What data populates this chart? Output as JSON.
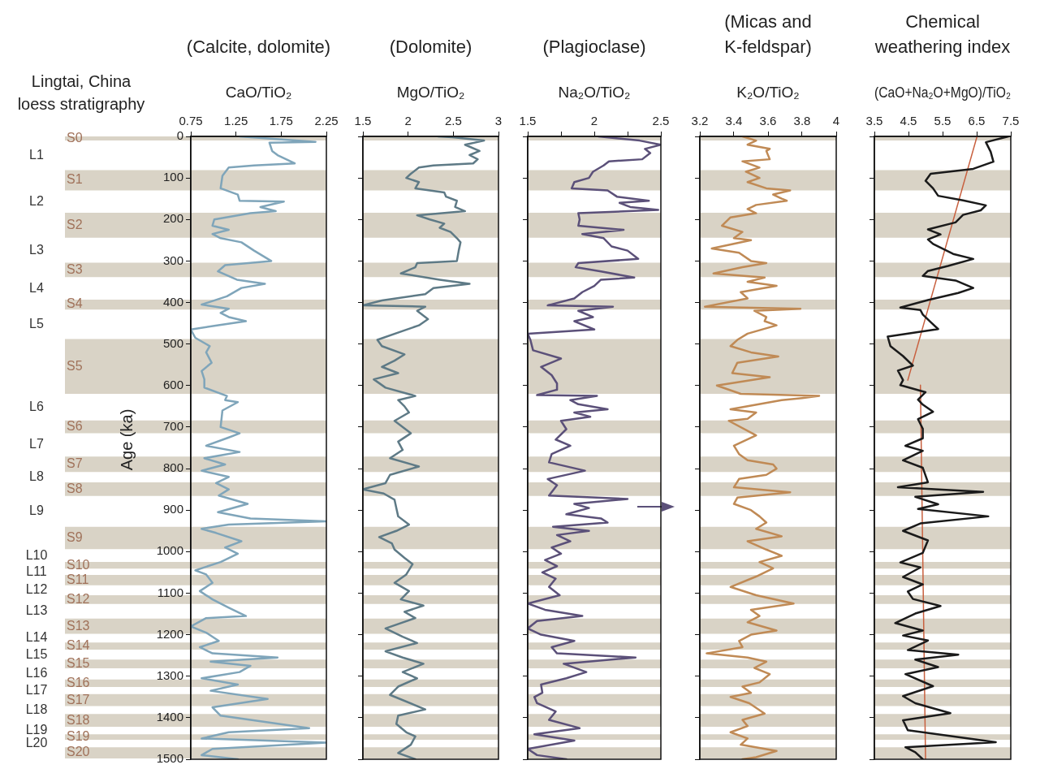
{
  "chart_data": [
    {
      "type": "line",
      "title": "(Calcite, dolomite)",
      "xlabel": "CaO/TiO₂",
      "ylabel": "Age (ka)",
      "xlim": [
        0.75,
        2.25
      ],
      "xticks": [
        0.75,
        1.25,
        1.75,
        2.25
      ],
      "ylim": [
        1500,
        0
      ],
      "yticks": [
        0,
        100,
        200,
        300,
        400,
        500,
        600,
        700,
        800,
        900,
        1000,
        1100,
        1200,
        1300,
        1400,
        1500
      ],
      "annotations": [
        "Lingtai, China loess stratigraphy",
        "L1",
        "L2",
        "L3",
        "L4",
        "L5",
        "L6",
        "L7",
        "L8",
        "L9",
        "L10",
        "L11",
        "L12",
        "L13",
        "L14",
        "L15",
        "L16",
        "L17",
        "L18",
        "L19",
        "L20"
      ],
      "bands": [
        {
          "axis": "y",
          "from": 0,
          "to": 10,
          "label": "S0",
          "color": "#d9d3c6"
        },
        {
          "axis": "y",
          "from": 81,
          "to": 130,
          "label": "S1",
          "color": "#d9d3c6"
        },
        {
          "axis": "y",
          "from": 184,
          "to": 244,
          "label": "S2",
          "color": "#d9d3c6"
        },
        {
          "axis": "y",
          "from": 304,
          "to": 339,
          "label": "S3",
          "color": "#d9d3c6"
        },
        {
          "axis": "y",
          "from": 393,
          "to": 417,
          "label": "S4",
          "color": "#d9d3c6"
        },
        {
          "axis": "y",
          "from": 488,
          "to": 620,
          "label": "S5",
          "color": "#d9d3c6"
        },
        {
          "axis": "y",
          "from": 684,
          "to": 715,
          "label": "S6",
          "color": "#d9d3c6"
        },
        {
          "axis": "y",
          "from": 771,
          "to": 808,
          "label": "S7",
          "color": "#d9d3c6"
        },
        {
          "axis": "y",
          "from": 833,
          "to": 866,
          "label": "S8",
          "color": "#d9d3c6"
        },
        {
          "axis": "y",
          "from": 940,
          "to": 994,
          "label": "S9",
          "color": "#d9d3c6"
        },
        {
          "axis": "y",
          "from": 1025,
          "to": 1041,
          "label": "S10",
          "color": "#d9d3c6"
        },
        {
          "axis": "y",
          "from": 1056,
          "to": 1081,
          "label": "S11",
          "color": "#d9d3c6"
        },
        {
          "axis": "y",
          "from": 1105,
          "to": 1126,
          "label": "S12",
          "color": "#d9d3c6"
        },
        {
          "axis": "y",
          "from": 1161,
          "to": 1198,
          "label": "S13",
          "color": "#d9d3c6"
        },
        {
          "axis": "y",
          "from": 1219,
          "to": 1236,
          "label": "S14",
          "color": "#d9d3c6"
        },
        {
          "axis": "y",
          "from": 1260,
          "to": 1281,
          "label": "S15",
          "color": "#d9d3c6"
        },
        {
          "axis": "y",
          "from": 1308,
          "to": 1326,
          "label": "S16",
          "color": "#d9d3c6"
        },
        {
          "axis": "y",
          "from": 1343,
          "to": 1372,
          "label": "S17",
          "color": "#d9d3c6"
        },
        {
          "axis": "y",
          "from": 1391,
          "to": 1422,
          "label": "S18",
          "color": "#d9d3c6"
        },
        {
          "axis": "y",
          "from": 1440,
          "to": 1453,
          "label": "S19",
          "color": "#d9d3c6"
        },
        {
          "axis": "y",
          "from": 1471,
          "to": 1498,
          "label": "S20",
          "color": "#d9d3c6"
        }
      ],
      "series": [
        {
          "color": "#7fa5ba",
          "x": [
            1.29,
            2.13,
            1.62,
            1.65,
            1.71,
            1.9,
            1.45,
            1.17,
            1.1,
            1.08,
            1.27,
            1.29,
            1.78,
            1.52,
            1.69,
            1.41,
            1.01,
            0.99,
            1.17,
            0.99,
            1.08,
            1.31,
            1.45,
            1.64,
            1.13,
            1.05,
            1.26,
            1.57,
            1.31,
            1.15,
            0.87,
            1.17,
            1.08,
            1.17,
            1.36,
            1.04,
            0.75,
            0.8,
            0.96,
            0.92,
            0.98,
            0.87,
            0.9,
            0.9,
            1.15,
            1.13,
            1.27,
            1.1,
            1.08,
            1.29,
            1.17,
            0.92,
            1.29,
            0.9,
            1.13,
            0.87,
            1.17,
            1.03,
            1.17,
            1.06,
            1.38,
            1.05,
            1.41,
            2.25,
            1.17,
            0.87,
            1.03,
            1.31,
            1.13,
            1.27,
            1.08,
            0.8,
            0.92,
            0.99,
            0.85,
            0.99,
            1.17,
            1.36,
            0.92,
            0.75,
            0.92,
            1.06,
            0.85,
            0.99,
            1.71,
            0.97,
            1.41,
            1.29,
            0.87,
            1.27,
            0.97,
            1.6,
            0.99,
            1.08,
            2.06,
            1.17,
            0.87,
            2.25,
            0.99,
            0.87,
            1.27
          ],
          "values": [
            0,
            13,
            15,
            35,
            45,
            65,
            70,
            75,
            95,
            125,
            140,
            155,
            157,
            170,
            180,
            185,
            200,
            215,
            225,
            235,
            245,
            255,
            275,
            300,
            310,
            325,
            345,
            355,
            365,
            385,
            405,
            415,
            425,
            435,
            445,
            455,
            465,
            485,
            505,
            520,
            545,
            565,
            585,
            605,
            625,
            635,
            640,
            660,
            700,
            715,
            725,
            745,
            760,
            775,
            790,
            805,
            820,
            835,
            850,
            865,
            885,
            905,
            920,
            927,
            935,
            945,
            955,
            975,
            990,
            1005,
            1025,
            1045,
            1055,
            1075,
            1095,
            1115,
            1135,
            1155,
            1160,
            1180,
            1195,
            1215,
            1230,
            1245,
            1255,
            1265,
            1275,
            1290,
            1305,
            1320,
            1335,
            1355,
            1375,
            1395,
            1425,
            1435,
            1450,
            1460,
            1475,
            1490,
            1500
          ]
        }
      ]
    },
    {
      "type": "line",
      "title": "(Dolomite)",
      "xlabel": "MgO/TiO₂",
      "xlim": [
        1.5,
        3
      ],
      "xticks": [
        1.5,
        2,
        2.5,
        3
      ],
      "ylim": [
        1500,
        0
      ],
      "yticks": [
        0,
        100,
        200,
        300,
        400,
        500,
        600,
        700,
        800,
        900,
        1000,
        1100,
        1200,
        1300,
        1400,
        1500
      ],
      "tick_labels": "x",
      "bands": [
        {
          "axis": "y",
          "from": 0,
          "to": 10,
          "color": "#d9d3c6"
        },
        {
          "axis": "y",
          "from": 81,
          "to": 130,
          "color": "#d9d3c6"
        },
        {
          "axis": "y",
          "from": 184,
          "to": 244,
          "color": "#d9d3c6"
        },
        {
          "axis": "y",
          "from": 304,
          "to": 339,
          "color": "#d9d3c6"
        },
        {
          "axis": "y",
          "from": 393,
          "to": 417,
          "color": "#d9d3c6"
        },
        {
          "axis": "y",
          "from": 488,
          "to": 620,
          "color": "#d9d3c6"
        },
        {
          "axis": "y",
          "from": 684,
          "to": 715,
          "color": "#d9d3c6"
        },
        {
          "axis": "y",
          "from": 771,
          "to": 808,
          "color": "#d9d3c6"
        },
        {
          "axis": "y",
          "from": 833,
          "to": 866,
          "color": "#d9d3c6"
        },
        {
          "axis": "y",
          "from": 940,
          "to": 994,
          "color": "#d9d3c6"
        },
        {
          "axis": "y",
          "from": 1025,
          "to": 1041,
          "color": "#d9d3c6"
        },
        {
          "axis": "y",
          "from": 1056,
          "to": 1081,
          "color": "#d9d3c6"
        },
        {
          "axis": "y",
          "from": 1105,
          "to": 1126,
          "color": "#d9d3c6"
        },
        {
          "axis": "y",
          "from": 1161,
          "to": 1198,
          "color": "#d9d3c6"
        },
        {
          "axis": "y",
          "from": 1219,
          "to": 1236,
          "color": "#d9d3c6"
        },
        {
          "axis": "y",
          "from": 1260,
          "to": 1281,
          "color": "#d9d3c6"
        },
        {
          "axis": "y",
          "from": 1308,
          "to": 1326,
          "color": "#d9d3c6"
        },
        {
          "axis": "y",
          "from": 1343,
          "to": 1372,
          "color": "#d9d3c6"
        },
        {
          "axis": "y",
          "from": 1391,
          "to": 1422,
          "color": "#d9d3c6"
        },
        {
          "axis": "y",
          "from": 1440,
          "to": 1453,
          "color": "#d9d3c6"
        },
        {
          "axis": "y",
          "from": 1471,
          "to": 1498,
          "color": "#d9d3c6"
        }
      ],
      "series": [
        {
          "color": "#5e7a86",
          "x": [
            2.33,
            2.49,
            2.84,
            2.63,
            2.79,
            2.68,
            2.77,
            2.72,
            2.28,
            2.12,
            2.03,
            1.98,
            2.12,
            2.08,
            2.4,
            2.42,
            2.54,
            2.52,
            2.63,
            2.1,
            2.24,
            2.4,
            2.35,
            2.47,
            2.54,
            2.58,
            2.56,
            2.54,
            2.1,
            2.08,
            1.92,
            2.35,
            2.68,
            2.28,
            2.19,
            1.71,
            1.5,
            2.19,
            2.1,
            2.22,
            2.12,
            1.92,
            1.66,
            1.71,
            1.96,
            1.85,
            1.71,
            1.89,
            1.62,
            1.75,
            2.08,
            1.89,
            1.96,
            2.01,
            1.85,
            2.03,
            1.89,
            1.94,
            1.8,
            2.12,
            1.8,
            1.75,
            1.5,
            1.73,
            1.85,
            1.87,
            1.89,
            2.01,
            1.87,
            1.68,
            1.82,
            1.85,
            1.96,
            2.05,
            1.98,
            1.85,
            2.01,
            1.92,
            2.17,
            1.96,
            2.08,
            1.75,
            1.94,
            2.1,
            1.75,
            1.94,
            2.17,
            1.94,
            2.1,
            1.89,
            1.8,
            2.19,
            1.89,
            1.87,
            1.98,
            2.08,
            2.03,
            1.89,
            2.08
          ],
          "values": [
            0,
            2,
            10,
            20,
            35,
            45,
            55,
            65,
            70,
            75,
            90,
            100,
            110,
            125,
            135,
            145,
            155,
            170,
            180,
            190,
            200,
            210,
            220,
            230,
            245,
            255,
            275,
            300,
            305,
            315,
            330,
            345,
            355,
            365,
            380,
            395,
            407,
            410,
            420,
            440,
            455,
            470,
            490,
            505,
            525,
            540,
            555,
            570,
            585,
            605,
            625,
            635,
            650,
            665,
            685,
            715,
            735,
            755,
            775,
            795,
            815,
            835,
            850,
            860,
            875,
            895,
            915,
            935,
            950,
            965,
            980,
            995,
            1015,
            1030,
            1055,
            1075,
            1095,
            1115,
            1130,
            1145,
            1160,
            1185,
            1205,
            1220,
            1240,
            1255,
            1270,
            1290,
            1305,
            1325,
            1345,
            1380,
            1395,
            1415,
            1435,
            1445,
            1465,
            1485,
            1500
          ]
        }
      ]
    },
    {
      "type": "line",
      "title": "(Plagioclase)",
      "xlabel": "Na₂O/TiO₂",
      "xlim": [
        1.5,
        2.5
      ],
      "xticks": [
        1.5,
        {
          "value": 1.75,
          "label": null
        },
        2,
        {
          "value": 2.25,
          "label": null
        },
        2.5
      ],
      "ylim": [
        1500,
        0
      ],
      "yticks": [
        0,
        100,
        200,
        300,
        400,
        500,
        600,
        700,
        800,
        900,
        1000,
        1100,
        1200,
        1300,
        1400,
        1500
      ],
      "tick_labels": "x",
      "bands": [
        {
          "axis": "y",
          "from": 0,
          "to": 10,
          "color": "#d9d3c6"
        },
        {
          "axis": "y",
          "from": 81,
          "to": 130,
          "color": "#d9d3c6"
        },
        {
          "axis": "y",
          "from": 184,
          "to": 244,
          "color": "#d9d3c6"
        },
        {
          "axis": "y",
          "from": 304,
          "to": 339,
          "color": "#d9d3c6"
        },
        {
          "axis": "y",
          "from": 393,
          "to": 417,
          "color": "#d9d3c6"
        },
        {
          "axis": "y",
          "from": 488,
          "to": 620,
          "color": "#d9d3c6"
        },
        {
          "axis": "y",
          "from": 684,
          "to": 715,
          "color": "#d9d3c6"
        },
        {
          "axis": "y",
          "from": 771,
          "to": 808,
          "color": "#d9d3c6"
        },
        {
          "axis": "y",
          "from": 833,
          "to": 866,
          "color": "#d9d3c6"
        },
        {
          "axis": "y",
          "from": 940,
          "to": 994,
          "color": "#d9d3c6"
        },
        {
          "axis": "y",
          "from": 1025,
          "to": 1041,
          "color": "#d9d3c6"
        },
        {
          "axis": "y",
          "from": 1056,
          "to": 1081,
          "color": "#d9d3c6"
        },
        {
          "axis": "y",
          "from": 1105,
          "to": 1126,
          "color": "#d9d3c6"
        },
        {
          "axis": "y",
          "from": 1161,
          "to": 1198,
          "color": "#d9d3c6"
        },
        {
          "axis": "y",
          "from": 1219,
          "to": 1236,
          "color": "#d9d3c6"
        },
        {
          "axis": "y",
          "from": 1260,
          "to": 1281,
          "color": "#d9d3c6"
        },
        {
          "axis": "y",
          "from": 1308,
          "to": 1326,
          "color": "#d9d3c6"
        },
        {
          "axis": "y",
          "from": 1343,
          "to": 1372,
          "color": "#d9d3c6"
        },
        {
          "axis": "y",
          "from": 1391,
          "to": 1422,
          "color": "#d9d3c6"
        },
        {
          "axis": "y",
          "from": 1440,
          "to": 1453,
          "color": "#d9d3c6"
        },
        {
          "axis": "y",
          "from": 1471,
          "to": 1498,
          "color": "#d9d3c6"
        }
      ],
      "series": [
        {
          "color": "#5b5079",
          "x": [
            2.03,
            2.34,
            2.5,
            2.38,
            2.42,
            2.36,
            2.11,
            2.07,
            1.99,
            1.96,
            1.85,
            1.83,
            2.1,
            2.17,
            2.41,
            2.19,
            2.27,
            2.48,
            1.88,
            1.89,
            1.88,
            2.22,
            1.91,
            2.07,
            2.13,
            2.25,
            2.33,
            1.88,
            1.86,
            2.05,
            2.3,
            2.05,
            2.0,
            1.91,
            1.85,
            1.65,
            2.14,
            1.88,
            1.99,
            1.85,
            2.0,
            1.5,
            1.52,
            1.54,
            1.75,
            1.6,
            1.68,
            1.72,
            1.72,
            1.57,
            2.02,
            1.82,
            1.88,
            2.1,
            1.85,
            1.97,
            1.75,
            1.79,
            1.71,
            1.82,
            1.68,
            1.66,
            1.93,
            1.65,
            1.72,
            1.66,
            2.25,
            1.85,
            1.96,
            1.79,
            2.05,
            2.1,
            1.69,
            1.96,
            1.72,
            1.82,
            1.68,
            1.75,
            1.63,
            1.72,
            1.61,
            1.71,
            1.66,
            1.74,
            1.5,
            1.63,
            1.91,
            1.57,
            1.5,
            1.6,
            1.85,
            1.68,
            1.72,
            2.31,
            1.77,
            1.94,
            1.79,
            1.6,
            1.61,
            1.55,
            1.57,
            1.71,
            1.66,
            1.89,
            1.55,
            1.85,
            1.5,
            1.57,
            1.79
          ],
          "values": [
            0,
            10,
            20,
            30,
            40,
            55,
            60,
            70,
            85,
            100,
            110,
            125,
            130,
            145,
            155,
            160,
            170,
            177,
            185,
            200,
            215,
            225,
            235,
            245,
            265,
            275,
            295,
            305,
            315,
            325,
            340,
            345,
            360,
            375,
            390,
            407,
            410,
            420,
            435,
            445,
            465,
            475,
            490,
            515,
            535,
            555,
            575,
            595,
            610,
            623,
            625,
            635,
            645,
            657,
            665,
            675,
            685,
            705,
            730,
            745,
            765,
            785,
            805,
            825,
            840,
            865,
            873,
            885,
            895,
            910,
            920,
            930,
            940,
            950,
            960,
            975,
            990,
            1005,
            1020,
            1035,
            1050,
            1065,
            1085,
            1105,
            1125,
            1140,
            1155,
            1167,
            1185,
            1200,
            1215,
            1230,
            1245,
            1255,
            1270,
            1290,
            1305,
            1320,
            1340,
            1350,
            1365,
            1385,
            1405,
            1425,
            1440,
            1455,
            1475,
            1490,
            1500
          ]
        }
      ]
    },
    {
      "type": "line",
      "title": "(Micas and K-feldspar)",
      "xlabel": "K₂O/TiO₂",
      "xlim": [
        3.2,
        4
      ],
      "xticks": [
        3.2,
        3.4,
        3.6,
        3.8,
        4
      ],
      "ylim": [
        1500,
        0
      ],
      "yticks": [
        0,
        100,
        200,
        300,
        400,
        500,
        600,
        700,
        800,
        900,
        1000,
        1100,
        1200,
        1300,
        1400,
        1500
      ],
      "tick_labels": "x",
      "bands": [
        {
          "axis": "y",
          "from": 0,
          "to": 10,
          "color": "#d9d3c6"
        },
        {
          "axis": "y",
          "from": 81,
          "to": 130,
          "color": "#d9d3c6"
        },
        {
          "axis": "y",
          "from": 184,
          "to": 244,
          "color": "#d9d3c6"
        },
        {
          "axis": "y",
          "from": 304,
          "to": 339,
          "color": "#d9d3c6"
        },
        {
          "axis": "y",
          "from": 393,
          "to": 417,
          "color": "#d9d3c6"
        },
        {
          "axis": "y",
          "from": 488,
          "to": 620,
          "color": "#d9d3c6"
        },
        {
          "axis": "y",
          "from": 684,
          "to": 715,
          "color": "#d9d3c6"
        },
        {
          "axis": "y",
          "from": 771,
          "to": 808,
          "color": "#d9d3c6"
        },
        {
          "axis": "y",
          "from": 833,
          "to": 866,
          "color": "#d9d3c6"
        },
        {
          "axis": "y",
          "from": 940,
          "to": 994,
          "color": "#d9d3c6"
        },
        {
          "axis": "y",
          "from": 1025,
          "to": 1041,
          "color": "#d9d3c6"
        },
        {
          "axis": "y",
          "from": 1056,
          "to": 1081,
          "color": "#d9d3c6"
        },
        {
          "axis": "y",
          "from": 1105,
          "to": 1126,
          "color": "#d9d3c6"
        },
        {
          "axis": "y",
          "from": 1161,
          "to": 1198,
          "color": "#d9d3c6"
        },
        {
          "axis": "y",
          "from": 1219,
          "to": 1236,
          "color": "#d9d3c6"
        },
        {
          "axis": "y",
          "from": 1260,
          "to": 1281,
          "color": "#d9d3c6"
        },
        {
          "axis": "y",
          "from": 1308,
          "to": 1326,
          "color": "#d9d3c6"
        },
        {
          "axis": "y",
          "from": 1343,
          "to": 1372,
          "color": "#d9d3c6"
        },
        {
          "axis": "y",
          "from": 1391,
          "to": 1422,
          "color": "#d9d3c6"
        },
        {
          "axis": "y",
          "from": 1440,
          "to": 1453,
          "color": "#d9d3c6"
        },
        {
          "axis": "y",
          "from": 1471,
          "to": 1498,
          "color": "#d9d3c6"
        }
      ],
      "series": [
        {
          "color": "#c08a55",
          "x": [
            3.45,
            3.53,
            3.48,
            3.61,
            3.59,
            3.61,
            3.45,
            3.55,
            3.47,
            3.55,
            3.48,
            3.59,
            3.73,
            3.63,
            3.68,
            3.71,
            3.53,
            3.48,
            3.53,
            3.38,
            3.33,
            3.45,
            3.4,
            3.5,
            3.27,
            3.43,
            3.5,
            3.59,
            3.45,
            3.28,
            3.58,
            3.48,
            3.65,
            3.44,
            3.48,
            3.23,
            3.79,
            3.52,
            3.59,
            3.58,
            3.65,
            3.48,
            3.42,
            3.38,
            3.5,
            3.66,
            3.42,
            3.39,
            3.61,
            3.3,
            3.44,
            3.9,
            3.8,
            3.68,
            3.38,
            3.53,
            3.48,
            3.37,
            3.53,
            3.4,
            3.43,
            3.48,
            3.63,
            3.65,
            3.59,
            3.43,
            3.4,
            3.73,
            3.42,
            3.4,
            3.5,
            3.55,
            3.59,
            3.53,
            3.68,
            3.48,
            3.59,
            3.68,
            3.55,
            3.63,
            3.53,
            3.38,
            3.53,
            3.75,
            3.5,
            3.55,
            3.48,
            3.65,
            3.5,
            3.43,
            3.45,
            3.24,
            3.48,
            3.59,
            3.52,
            3.61,
            3.55,
            3.45,
            3.5,
            3.38,
            3.49,
            3.58,
            3.45,
            3.48,
            3.38,
            3.48,
            3.44,
            3.65,
            3.53,
            3.45
          ],
          "values": [
            0,
            10,
            20,
            30,
            35,
            55,
            60,
            75,
            85,
            100,
            110,
            125,
            130,
            140,
            150,
            155,
            165,
            175,
            185,
            195,
            215,
            230,
            245,
            250,
            270,
            280,
            300,
            305,
            315,
            330,
            340,
            350,
            360,
            375,
            390,
            410,
            415,
            420,
            435,
            445,
            455,
            475,
            490,
            505,
            520,
            530,
            545,
            570,
            580,
            600,
            620,
            625,
            630,
            635,
            657,
            665,
            680,
            685,
            720,
            745,
            765,
            780,
            790,
            800,
            815,
            825,
            845,
            857,
            870,
            885,
            900,
            915,
            930,
            945,
            963,
            975,
            995,
            1010,
            1025,
            1040,
            1060,
            1085,
            1105,
            1125,
            1140,
            1155,
            1170,
            1190,
            1200,
            1215,
            1230,
            1245,
            1255,
            1265,
            1280,
            1295,
            1315,
            1325,
            1340,
            1350,
            1365,
            1390,
            1405,
            1420,
            1435,
            1450,
            1465,
            1480,
            1495,
            1500
          ]
        }
      ]
    },
    {
      "type": "line",
      "title": "Chemical weathering index",
      "xlabel": "(CaO+Na₂O+MgO)/TiO₂",
      "xlim": [
        3.5,
        7.5
      ],
      "xticks": [
        3.5,
        4.5,
        5.5,
        6.5,
        7.5
      ],
      "ylim": [
        1500,
        0
      ],
      "yticks": [
        0,
        100,
        200,
        300,
        400,
        500,
        600,
        700,
        800,
        900,
        1000,
        1100,
        1200,
        1300,
        1400,
        1500
      ],
      "tick_labels": "x",
      "bands": [
        {
          "axis": "y",
          "from": 0,
          "to": 10,
          "color": "#d9d3c6"
        },
        {
          "axis": "y",
          "from": 81,
          "to": 130,
          "color": "#d9d3c6"
        },
        {
          "axis": "y",
          "from": 184,
          "to": 244,
          "color": "#d9d3c6"
        },
        {
          "axis": "y",
          "from": 304,
          "to": 339,
          "color": "#d9d3c6"
        },
        {
          "axis": "y",
          "from": 393,
          "to": 417,
          "color": "#d9d3c6"
        },
        {
          "axis": "y",
          "from": 488,
          "to": 620,
          "color": "#d9d3c6"
        },
        {
          "axis": "y",
          "from": 684,
          "to": 715,
          "color": "#d9d3c6"
        },
        {
          "axis": "y",
          "from": 771,
          "to": 808,
          "color": "#d9d3c6"
        },
        {
          "axis": "y",
          "from": 833,
          "to": 866,
          "color": "#d9d3c6"
        },
        {
          "axis": "y",
          "from": 940,
          "to": 994,
          "color": "#d9d3c6"
        },
        {
          "axis": "y",
          "from": 1025,
          "to": 1041,
          "color": "#d9d3c6"
        },
        {
          "axis": "y",
          "from": 1056,
          "to": 1081,
          "color": "#d9d3c6"
        },
        {
          "axis": "y",
          "from": 1105,
          "to": 1126,
          "color": "#d9d3c6"
        },
        {
          "axis": "y",
          "from": 1161,
          "to": 1198,
          "color": "#d9d3c6"
        },
        {
          "axis": "y",
          "from": 1219,
          "to": 1236,
          "color": "#d9d3c6"
        },
        {
          "axis": "y",
          "from": 1260,
          "to": 1281,
          "color": "#d9d3c6"
        },
        {
          "axis": "y",
          "from": 1308,
          "to": 1326,
          "color": "#d9d3c6"
        },
        {
          "axis": "y",
          "from": 1343,
          "to": 1372,
          "color": "#d9d3c6"
        },
        {
          "axis": "y",
          "from": 1391,
          "to": 1422,
          "color": "#d9d3c6"
        },
        {
          "axis": "y",
          "from": 1440,
          "to": 1453,
          "color": "#d9d3c6"
        },
        {
          "axis": "y",
          "from": 1471,
          "to": 1498,
          "color": "#d9d3c6"
        }
      ],
      "series": [
        {
          "color": "#1a1a1a",
          "x": [
            7.43,
            6.77,
            6.91,
            6.99,
            6.4,
            5.15,
            5.0,
            5.22,
            5.37,
            6.1,
            6.77,
            6.62,
            6.1,
            5.88,
            5.07,
            5.44,
            5.07,
            5.22,
            5.81,
            6.4,
            5.66,
            5.07,
            4.92,
            5.88,
            6.4,
            5.96,
            5.07,
            4.26,
            4.85,
            4.92,
            5.15,
            5.37,
            3.89,
            3.97,
            4.34,
            4.63,
            4.19,
            4.34,
            4.26,
            5.0,
            4.78,
            4.92,
            5.22,
            4.78,
            4.92,
            4.92,
            4.41,
            4.92,
            4.34,
            4.92,
            5.07,
            4.19,
            6.69,
            4.7,
            5.37,
            4.78,
            6.84,
            4.85,
            4.34,
            5.07,
            4.92,
            4.26,
            4.85,
            4.34,
            4.92,
            4.48,
            4.63,
            5.44,
            4.7,
            4.11,
            4.92,
            4.34,
            5.07,
            4.48,
            5.96,
            4.7,
            5.37,
            4.41,
            5.22,
            4.34,
            4.7,
            5.73,
            4.34,
            4.48,
            7.06,
            4.41,
            4.7,
            4.92
          ],
          "values": [
            0,
            14,
            37,
            61,
            78,
            90,
            107,
            125,
            143,
            154,
            166,
            178,
            189,
            207,
            224,
            236,
            248,
            259,
            283,
            295,
            312,
            324,
            336,
            347,
            365,
            377,
            394,
            412,
            418,
            429,
            447,
            464,
            482,
            505,
            529,
            552,
            564,
            587,
            599,
            616,
            634,
            646,
            663,
            681,
            704,
            727,
            745,
            757,
            780,
            798,
            833,
            845,
            856,
            868,
            886,
            897,
            915,
            932,
            950,
            973,
            1003,
            1026,
            1038,
            1061,
            1079,
            1096,
            1114,
            1131,
            1149,
            1172,
            1190,
            1202,
            1214,
            1237,
            1248,
            1260,
            1278,
            1295,
            1324,
            1348,
            1365,
            1389,
            1406,
            1430,
            1459,
            1471,
            1483,
            1500
          ]
        },
        {
          "type": "line",
          "color": "#c8603f",
          "x": [
            6.51,
            4.48
          ],
          "values": [
            0,
            587
          ]
        },
        {
          "type": "line",
          "color": "#c8603f",
          "x": [
            4.85,
            5.0
          ],
          "values": [
            599,
            1500
          ]
        }
      ]
    }
  ]
}
